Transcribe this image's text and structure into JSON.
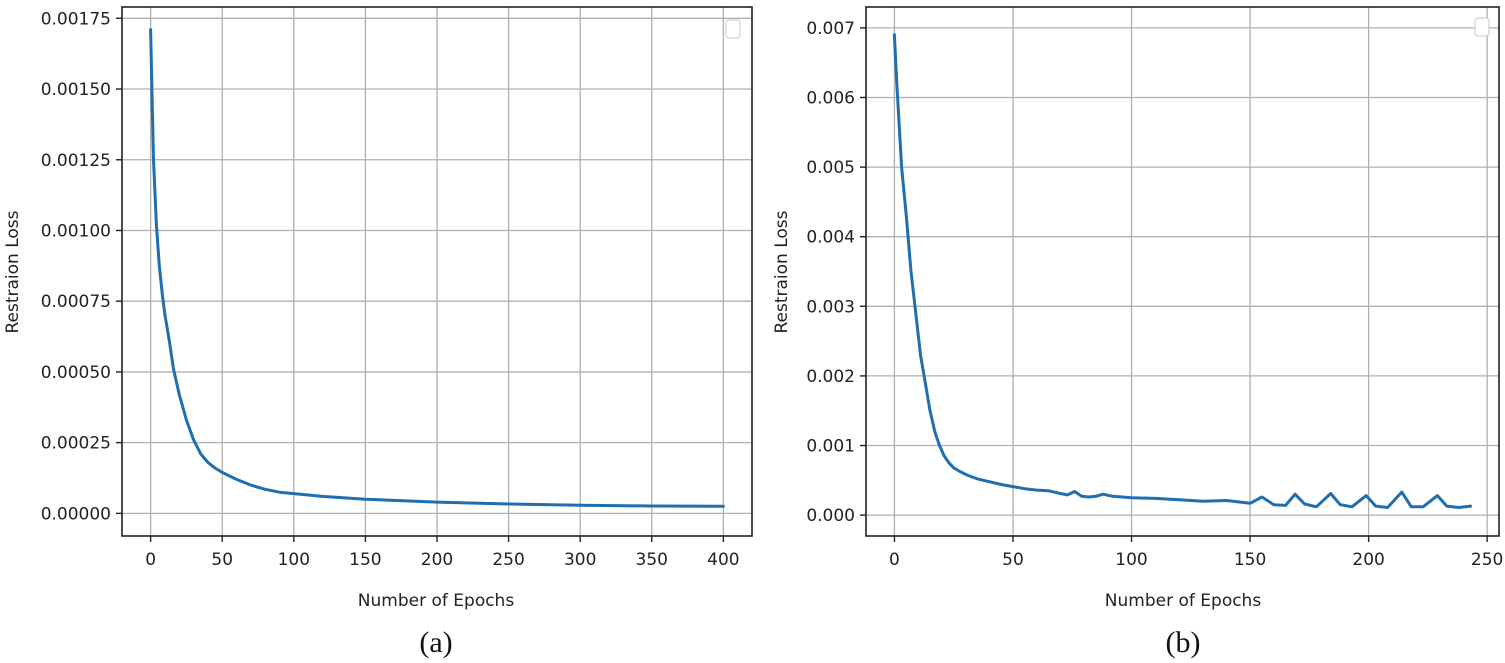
{
  "colors": {
    "line": "#1f6fb0",
    "grid": "#b0b0b0",
    "axis": "#222222"
  },
  "chart_data": [
    {
      "type": "line",
      "caption": "(a)",
      "xlabel": "Number of Epochs",
      "ylabel": "Restraion Loss",
      "xlim": [
        -20,
        420
      ],
      "ylim": [
        -8e-05,
        0.00179
      ],
      "xticks": [
        0,
        50,
        100,
        150,
        200,
        250,
        300,
        350,
        400
      ],
      "xtick_labels": [
        "0",
        "50",
        "100",
        "150",
        "200",
        "250",
        "300",
        "350",
        "400"
      ],
      "yticks": [
        0,
        0.00025,
        0.0005,
        0.00075,
        0.001,
        0.00125,
        0.0015,
        0.00175
      ],
      "ytick_labels": [
        "0.00000",
        "0.00025",
        "0.00050",
        "0.00075",
        "0.00100",
        "0.00125",
        "0.00150",
        "0.00175"
      ],
      "grid": true,
      "legend": "top-right (empty)",
      "series": [
        {
          "x": [
            0,
            2,
            4,
            6,
            8,
            10,
            13,
            16,
            20,
            25,
            30,
            35,
            40,
            45,
            50,
            60,
            70,
            80,
            90,
            100,
            120,
            150,
            200,
            250,
            300,
            350,
            400
          ],
          "y": [
            0.00171,
            0.00125,
            0.00102,
            0.00088,
            0.00078,
            0.0007,
            0.00061,
            0.00051,
            0.00042,
            0.00033,
            0.00026,
            0.00021,
            0.00018,
            0.00016,
            0.000145,
            0.00012,
            0.0001,
            8.5e-05,
            7.5e-05,
            7e-05,
            6e-05,
            5e-05,
            4e-05,
            3.3e-05,
            2.9e-05,
            2.6e-05,
            2.5e-05
          ]
        }
      ]
    },
    {
      "type": "line",
      "caption": "(b)",
      "xlabel": "Number of Epochs",
      "ylabel": "Restraion Loss",
      "xlim": [
        -12,
        255
      ],
      "ylim": [
        -0.0003,
        0.0073
      ],
      "xticks": [
        0,
        50,
        100,
        150,
        200,
        250
      ],
      "xtick_labels": [
        "0",
        "50",
        "100",
        "150",
        "200",
        "250"
      ],
      "yticks": [
        0,
        0.001,
        0.002,
        0.003,
        0.004,
        0.005,
        0.006,
        0.007
      ],
      "ytick_labels": [
        "0.000",
        "0.001",
        "0.002",
        "0.003",
        "0.004",
        "0.005",
        "0.006",
        "0.007"
      ],
      "grid": true,
      "legend": "top-right (empty)",
      "series": [
        {
          "x": [
            0,
            1,
            2,
            3,
            5,
            7,
            9,
            11,
            13,
            15,
            17,
            19,
            21,
            23,
            25,
            28,
            31,
            35,
            40,
            45,
            50,
            55,
            60,
            65,
            70,
            73,
            76,
            79,
            82,
            85,
            88,
            92,
            100,
            110,
            120,
            130,
            140,
            145,
            150,
            155,
            160,
            165,
            169,
            173,
            178,
            184,
            188,
            193,
            199,
            203,
            208,
            214,
            218,
            223,
            229,
            233,
            238,
            243
          ],
          "y": [
            0.0069,
            0.0062,
            0.0056,
            0.005,
            0.0043,
            0.0035,
            0.0029,
            0.0023,
            0.0019,
            0.0015,
            0.0012,
            0.001,
            0.00085,
            0.00075,
            0.00068,
            0.00062,
            0.00057,
            0.00052,
            0.00048,
            0.00044,
            0.00041,
            0.00038,
            0.00036,
            0.00035,
            0.00031,
            0.00029,
            0.00034,
            0.00027,
            0.00026,
            0.00027,
            0.0003,
            0.00027,
            0.00025,
            0.00024,
            0.00022,
            0.0002,
            0.00021,
            0.00019,
            0.00017,
            0.00026,
            0.00015,
            0.00014,
            0.0003,
            0.00016,
            0.00012,
            0.00031,
            0.00015,
            0.00012,
            0.00028,
            0.00013,
            0.00011,
            0.00033,
            0.00012,
            0.00012,
            0.00028,
            0.00013,
            0.00011,
            0.00013
          ]
        }
      ]
    }
  ]
}
